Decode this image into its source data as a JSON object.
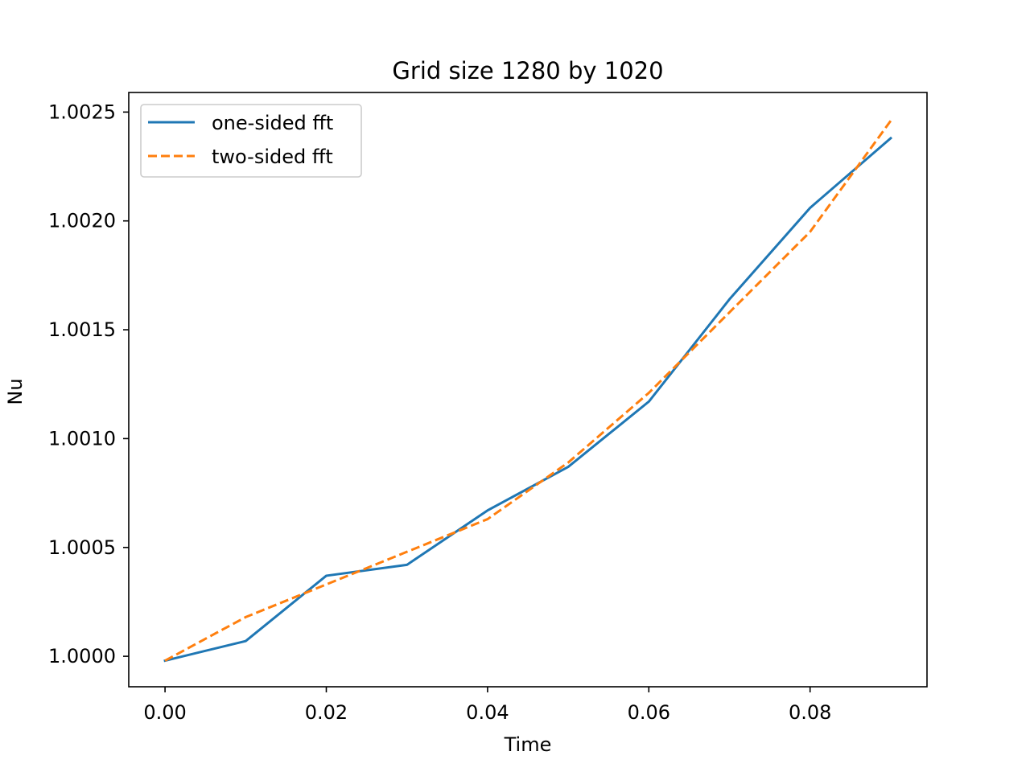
{
  "chart_data": {
    "type": "line",
    "title": "Grid size 1280 by 1020",
    "xlabel": "Time",
    "ylabel": "Nu",
    "xlim": [
      -0.0045,
      0.0945
    ],
    "ylim": [
      0.99986,
      1.00259
    ],
    "xticks": [
      0.0,
      0.02,
      0.04,
      0.06,
      0.08
    ],
    "xtick_labels": [
      "0.00",
      "0.02",
      "0.04",
      "0.06",
      "0.08"
    ],
    "yticks": [
      1.0,
      1.0005,
      1.001,
      1.0015,
      1.002,
      1.0025
    ],
    "ytick_labels": [
      "1.0000",
      "1.0005",
      "1.0010",
      "1.0015",
      "1.0020",
      "1.0025"
    ],
    "grid": false,
    "legend_position": "upper-left",
    "x": [
      0.0,
      0.01,
      0.02,
      0.03,
      0.04,
      0.05,
      0.06,
      0.07,
      0.08,
      0.09
    ],
    "series": [
      {
        "name": "one-sided fft",
        "style": "solid",
        "color": "#1f77b4",
        "values": [
          0.99998,
          1.00007,
          1.00037,
          1.00042,
          1.00067,
          1.00087,
          1.00117,
          1.00164,
          1.00206,
          1.00238
        ]
      },
      {
        "name": "two-sided fft",
        "style": "dashed",
        "color": "#ff7f0e",
        "values": [
          0.99998,
          1.00018,
          1.00033,
          1.00048,
          1.00063,
          1.00089,
          1.00121,
          1.00158,
          1.00195,
          1.00246
        ]
      }
    ]
  }
}
